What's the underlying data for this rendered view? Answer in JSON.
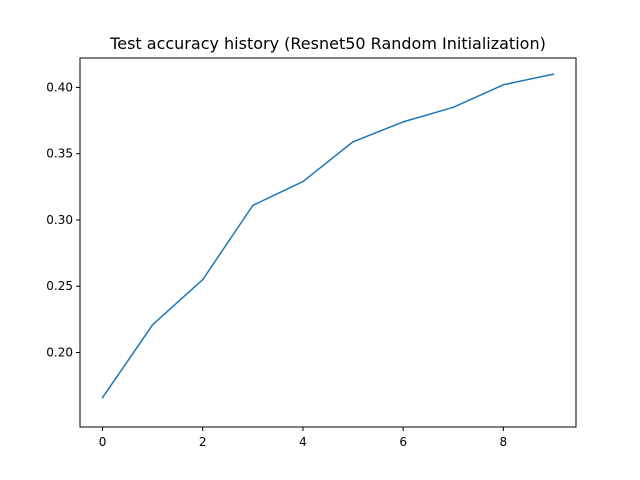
{
  "chart_data": {
    "type": "line",
    "title": "Test accuracy history (Resnet50 Random Initialization)",
    "xlabel": "",
    "ylabel": "",
    "x": [
      0,
      1,
      2,
      3,
      4,
      5,
      6,
      7,
      8,
      9
    ],
    "series": [
      {
        "values": [
          0.166,
          0.221,
          0.255,
          0.311,
          0.329,
          0.359,
          0.374,
          0.385,
          0.402,
          0.41
        ],
        "color": "#1f77b4"
      }
    ],
    "xlim": [
      -0.45,
      9.45
    ],
    "ylim": [
      0.1438,
      0.4222
    ],
    "xticks": [
      0,
      2,
      4,
      6,
      8
    ],
    "xtick_labels": [
      "0",
      "2",
      "4",
      "6",
      "8"
    ],
    "yticks": [
      0.2,
      0.25,
      0.3,
      0.35,
      0.4
    ],
    "ytick_labels": [
      "0.20",
      "0.25",
      "0.30",
      "0.35",
      "0.40"
    ],
    "grid": false,
    "legend": "none"
  }
}
